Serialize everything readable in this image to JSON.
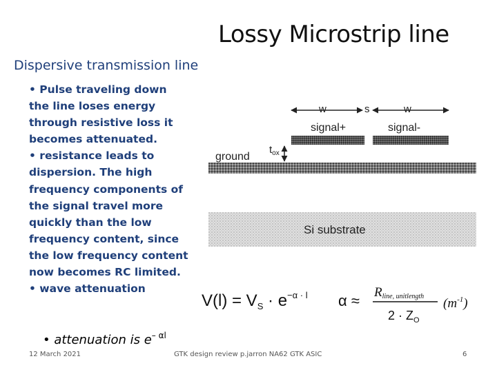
{
  "title": "Lossy Microstrip line",
  "subtitle": "Dispersive transmission line",
  "bullets": [
    "• Pulse traveling down the line loses energy through resistive loss it becomes attenuated.",
    "• resistance leads to dispersion. The high frequency components of the signal travel more quickly than the low frequency content, since the low frequency content now becomes RC limited.",
    "• wave attenuation"
  ],
  "attenuation": {
    "text": "• attenuation is  e",
    "exponent": "– αl"
  },
  "diagram": {
    "w_left": "w",
    "s": "s",
    "w_right": "w",
    "signal_plus": "signal+",
    "signal_minus": "signal-",
    "tox": "t",
    "tox_sub": "ox",
    "ground": "ground",
    "substrate": "Si substrate"
  },
  "formula": {
    "lhs": "V(l) = V",
    "lhs_sub": "S",
    "mid": " · e",
    "exp": "−α · l",
    "alpha": "α  ≈",
    "numerator": "R",
    "numerator_sub": "line, unitlength",
    "denominator": "2 · Z",
    "denominator_sub": "O",
    "unit": "(m",
    "unit_exp": "-1",
    "unit_close": ")"
  },
  "footer": {
    "date": "12 March 2021",
    "center": "GTK design review  p.jarron  NA62 GTK ASIC",
    "page": "6"
  }
}
